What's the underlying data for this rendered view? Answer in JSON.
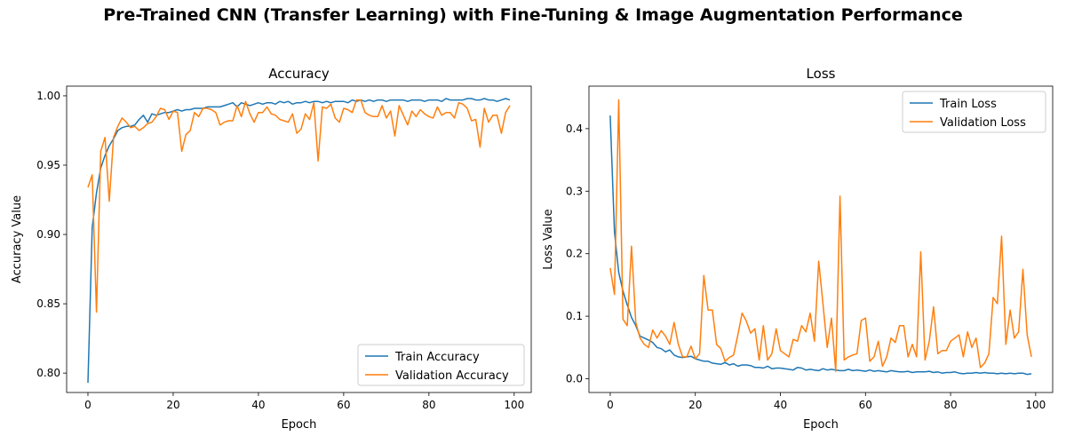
{
  "figure": {
    "suptitle": "Pre-Trained CNN (Transfer Learning) with Fine-Tuning & Image Augmentation Performance"
  },
  "chart_data": [
    {
      "type": "line",
      "title": "Accuracy",
      "xlabel": "Epoch",
      "ylabel": "Accuracy Value",
      "xlim": [
        -5,
        104
      ],
      "ylim": [
        0.786,
        1.007
      ],
      "xticks": [
        0,
        20,
        40,
        60,
        80,
        100
      ],
      "yticks": [
        0.8,
        0.85,
        0.9,
        0.95,
        1.0
      ],
      "ytick_labels": [
        "0.80",
        "0.85",
        "0.90",
        "0.95",
        "1.00"
      ],
      "grid": false,
      "legend_position": "lower-right",
      "x": [
        0,
        1,
        2,
        3,
        4,
        5,
        6,
        7,
        8,
        9,
        10,
        11,
        12,
        13,
        14,
        15,
        16,
        17,
        18,
        19,
        20,
        21,
        22,
        23,
        24,
        25,
        26,
        27,
        28,
        29,
        30,
        31,
        32,
        33,
        34,
        35,
        36,
        37,
        38,
        39,
        40,
        41,
        42,
        43,
        44,
        45,
        46,
        47,
        48,
        49,
        50,
        51,
        52,
        53,
        54,
        55,
        56,
        57,
        58,
        59,
        60,
        61,
        62,
        63,
        64,
        65,
        66,
        67,
        68,
        69,
        70,
        71,
        72,
        73,
        74,
        75,
        76,
        77,
        78,
        79,
        80,
        81,
        82,
        83,
        84,
        85,
        86,
        87,
        88,
        89,
        90,
        91,
        92,
        93,
        94,
        95,
        96,
        97,
        98,
        99
      ],
      "series": [
        {
          "name": "Train Accuracy",
          "color": "#1f77b4",
          "values": [
            0.793,
            0.905,
            0.93,
            0.948,
            0.957,
            0.964,
            0.969,
            0.975,
            0.977,
            0.978,
            0.978,
            0.979,
            0.983,
            0.986,
            0.981,
            0.987,
            0.986,
            0.987,
            0.988,
            0.988,
            0.989,
            0.99,
            0.989,
            0.99,
            0.99,
            0.991,
            0.991,
            0.991,
            0.992,
            0.992,
            0.992,
            0.992,
            0.993,
            0.994,
            0.995,
            0.992,
            0.995,
            0.994,
            0.993,
            0.994,
            0.995,
            0.994,
            0.995,
            0.995,
            0.994,
            0.996,
            0.995,
            0.996,
            0.994,
            0.995,
            0.995,
            0.996,
            0.995,
            0.996,
            0.996,
            0.995,
            0.996,
            0.995,
            0.996,
            0.996,
            0.996,
            0.995,
            0.997,
            0.996,
            0.997,
            0.996,
            0.997,
            0.996,
            0.997,
            0.997,
            0.996,
            0.997,
            0.997,
            0.997,
            0.997,
            0.996,
            0.997,
            0.997,
            0.997,
            0.996,
            0.997,
            0.997,
            0.997,
            0.996,
            0.998,
            0.997,
            0.997,
            0.997,
            0.997,
            0.998,
            0.998,
            0.997,
            0.997,
            0.998,
            0.997,
            0.997,
            0.996,
            0.997,
            0.998,
            0.997
          ]
        },
        {
          "name": "Validation Accuracy",
          "color": "#ff7f0e",
          "values": [
            0.934,
            0.943,
            0.844,
            0.96,
            0.97,
            0.924,
            0.97,
            0.978,
            0.984,
            0.981,
            0.977,
            0.978,
            0.975,
            0.977,
            0.98,
            0.981,
            0.985,
            0.991,
            0.99,
            0.983,
            0.989,
            0.988,
            0.96,
            0.972,
            0.975,
            0.988,
            0.985,
            0.991,
            0.991,
            0.99,
            0.988,
            0.979,
            0.981,
            0.982,
            0.982,
            0.993,
            0.985,
            0.996,
            0.987,
            0.981,
            0.988,
            0.988,
            0.992,
            0.987,
            0.986,
            0.983,
            0.982,
            0.981,
            0.987,
            0.973,
            0.976,
            0.987,
            0.983,
            0.995,
            0.953,
            0.992,
            0.991,
            0.994,
            0.984,
            0.981,
            0.991,
            0.99,
            0.988,
            0.997,
            0.997,
            0.988,
            0.986,
            0.985,
            0.985,
            0.993,
            0.984,
            0.989,
            0.971,
            0.993,
            0.986,
            0.979,
            0.989,
            0.985,
            0.99,
            0.987,
            0.985,
            0.984,
            0.992,
            0.986,
            0.988,
            0.988,
            0.984,
            0.995,
            0.994,
            0.991,
            0.982,
            0.983,
            0.963,
            0.991,
            0.981,
            0.986,
            0.986,
            0.973,
            0.988,
            0.993
          ]
        }
      ]
    },
    {
      "type": "line",
      "title": "Loss",
      "xlabel": "Epoch",
      "ylabel": "Loss Value",
      "xlim": [
        -5,
        104
      ],
      "ylim": [
        -0.022,
        0.468
      ],
      "xticks": [
        0,
        20,
        40,
        60,
        80,
        100
      ],
      "yticks": [
        0.0,
        0.1,
        0.2,
        0.3,
        0.4
      ],
      "ytick_labels": [
        "0.0",
        "0.1",
        "0.2",
        "0.3",
        "0.4"
      ],
      "grid": false,
      "legend_position": "upper-right",
      "x": [
        0,
        1,
        2,
        3,
        4,
        5,
        6,
        7,
        8,
        9,
        10,
        11,
        12,
        13,
        14,
        15,
        16,
        17,
        18,
        19,
        20,
        21,
        22,
        23,
        24,
        25,
        26,
        27,
        28,
        29,
        30,
        31,
        32,
        33,
        34,
        35,
        36,
        37,
        38,
        39,
        40,
        41,
        42,
        43,
        44,
        45,
        46,
        47,
        48,
        49,
        50,
        51,
        52,
        53,
        54,
        55,
        56,
        57,
        58,
        59,
        60,
        61,
        62,
        63,
        64,
        65,
        66,
        67,
        68,
        69,
        70,
        71,
        72,
        73,
        74,
        75,
        76,
        77,
        78,
        79,
        80,
        81,
        82,
        83,
        84,
        85,
        86,
        87,
        88,
        89,
        90,
        91,
        92,
        93,
        94,
        95,
        96,
        97,
        98,
        99
      ],
      "series": [
        {
          "name": "Train Loss",
          "color": "#1f77b4",
          "values": [
            0.421,
            0.235,
            0.17,
            0.14,
            0.118,
            0.098,
            0.085,
            0.068,
            0.065,
            0.062,
            0.058,
            0.05,
            0.048,
            0.043,
            0.046,
            0.038,
            0.035,
            0.034,
            0.035,
            0.036,
            0.032,
            0.03,
            0.028,
            0.028,
            0.025,
            0.024,
            0.023,
            0.026,
            0.022,
            0.024,
            0.02,
            0.022,
            0.022,
            0.021,
            0.018,
            0.018,
            0.017,
            0.02,
            0.016,
            0.017,
            0.017,
            0.016,
            0.015,
            0.014,
            0.018,
            0.017,
            0.014,
            0.015,
            0.014,
            0.013,
            0.016,
            0.014,
            0.015,
            0.014,
            0.013,
            0.013,
            0.015,
            0.013,
            0.014,
            0.013,
            0.012,
            0.014,
            0.012,
            0.013,
            0.012,
            0.011,
            0.013,
            0.012,
            0.011,
            0.011,
            0.012,
            0.01,
            0.011,
            0.011,
            0.011,
            0.012,
            0.01,
            0.011,
            0.009,
            0.01,
            0.01,
            0.011,
            0.009,
            0.008,
            0.009,
            0.009,
            0.01,
            0.009,
            0.01,
            0.009,
            0.009,
            0.008,
            0.009,
            0.008,
            0.009,
            0.008,
            0.009,
            0.009,
            0.007,
            0.008
          ]
        },
        {
          "name": "Validation Loss",
          "color": "#ff7f0e",
          "values": [
            0.177,
            0.135,
            0.446,
            0.095,
            0.085,
            0.212,
            0.09,
            0.065,
            0.055,
            0.05,
            0.078,
            0.065,
            0.077,
            0.068,
            0.055,
            0.09,
            0.055,
            0.035,
            0.035,
            0.052,
            0.032,
            0.04,
            0.165,
            0.11,
            0.11,
            0.055,
            0.048,
            0.028,
            0.034,
            0.038,
            0.07,
            0.105,
            0.092,
            0.073,
            0.08,
            0.03,
            0.085,
            0.03,
            0.04,
            0.08,
            0.045,
            0.04,
            0.035,
            0.063,
            0.06,
            0.085,
            0.075,
            0.105,
            0.06,
            0.188,
            0.12,
            0.05,
            0.097,
            0.012,
            0.292,
            0.03,
            0.035,
            0.038,
            0.04,
            0.093,
            0.097,
            0.028,
            0.035,
            0.06,
            0.02,
            0.035,
            0.065,
            0.058,
            0.085,
            0.085,
            0.035,
            0.055,
            0.035,
            0.203,
            0.03,
            0.06,
            0.115,
            0.04,
            0.045,
            0.045,
            0.06,
            0.065,
            0.07,
            0.035,
            0.075,
            0.05,
            0.065,
            0.018,
            0.025,
            0.04,
            0.13,
            0.12,
            0.228,
            0.055,
            0.11,
            0.065,
            0.075,
            0.175,
            0.07,
            0.035
          ]
        }
      ]
    }
  ]
}
